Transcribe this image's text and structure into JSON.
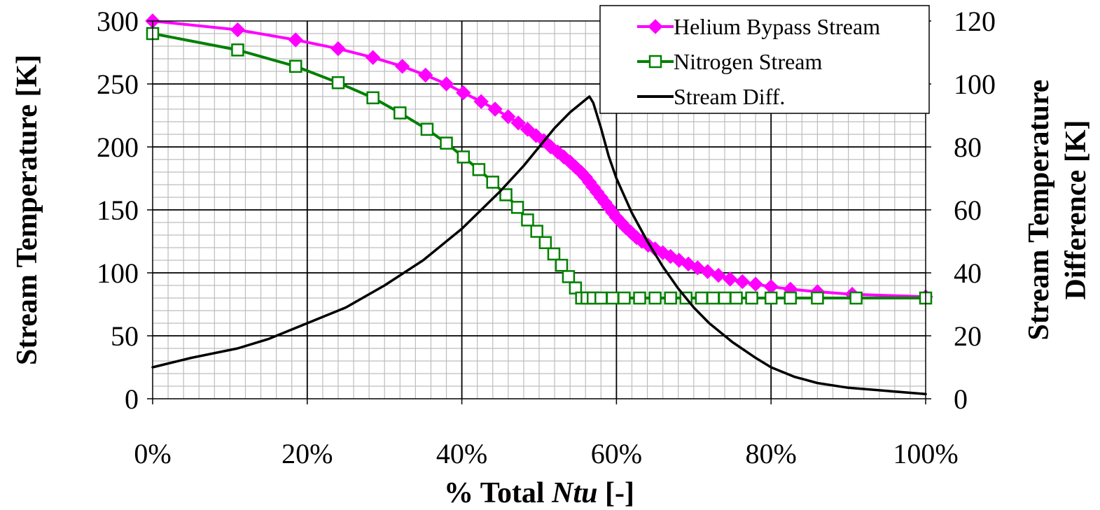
{
  "chart_data": {
    "type": "line",
    "title": "",
    "xlabel": "% Total Ntu [-]",
    "xlabel_parts": {
      "prefix": "% Total ",
      "italic": "Ntu",
      "suffix": " [-]"
    },
    "ylabel_left": "Stream Temperature [K]",
    "ylabel_right_line1": "Stream Temperature",
    "ylabel_right_line2": "Difference [K]",
    "xlim": [
      0,
      100
    ],
    "ylim_left": [
      0,
      300
    ],
    "ylim_right": [
      0,
      120
    ],
    "x_ticks": [
      0,
      20,
      40,
      60,
      80,
      100
    ],
    "x_tick_labels": [
      "0%",
      "20%",
      "40%",
      "60%",
      "80%",
      "100%"
    ],
    "y_ticks_left": [
      0,
      50,
      100,
      150,
      200,
      250,
      300
    ],
    "y_tick_labels_left": [
      "0",
      "50",
      "100",
      "150",
      "200",
      "250",
      "300"
    ],
    "y_ticks_right": [
      0,
      20,
      40,
      60,
      80,
      100,
      120
    ],
    "y_tick_labels_right": [
      "0",
      "20",
      "40",
      "60",
      "80",
      "100",
      "120"
    ],
    "grid": true,
    "legend_position": "top-right",
    "series": [
      {
        "name": "Helium Bypass Stream",
        "axis": "left",
        "color": "#ff00ff",
        "marker": "diamond",
        "x": [
          0,
          11,
          18.5,
          24,
          28.5,
          32.3,
          35.3,
          38,
          40.2,
          42.5,
          44.3,
          46,
          47.3,
          48.5,
          49.6,
          50.6,
          51.5,
          52.4,
          53.2,
          54,
          54.7,
          55.4,
          56,
          56.5,
          57,
          57.5,
          58,
          58.5,
          59,
          59.5,
          60,
          60.6,
          61.2,
          61.9,
          62.6,
          63.3,
          64.1,
          65,
          66,
          67,
          68.1,
          69.3,
          70.5,
          71.8,
          73.2,
          74.7,
          76.3,
          78,
          80,
          82.5,
          86,
          90.5,
          100
        ],
        "y": [
          300,
          293,
          285,
          278,
          271,
          264,
          257,
          250,
          243,
          236,
          230,
          224,
          219,
          214,
          209,
          205,
          200,
          196,
          192,
          188,
          184,
          180,
          176,
          172,
          168,
          164,
          160,
          156,
          152,
          148,
          144,
          140,
          136,
          132,
          128,
          125,
          122,
          119,
          116,
          113,
          110,
          107,
          104,
          101,
          98,
          95,
          93,
          91,
          89,
          87,
          85,
          83,
          81
        ]
      },
      {
        "name": "Nitrogen Stream",
        "axis": "left",
        "color": "#008000",
        "marker": "square-open",
        "x": [
          0,
          11,
          18.5,
          24,
          28.5,
          32,
          35.5,
          38,
          40.2,
          42.2,
          44,
          45.7,
          47.2,
          48.5,
          49.7,
          50.8,
          51.9,
          52.9,
          53.8,
          54.7,
          55.5,
          56.2,
          57,
          58,
          59.5,
          61,
          63,
          65,
          67,
          69,
          71,
          72.5,
          74,
          75.5,
          77.5,
          80,
          82.5,
          86,
          91,
          100
        ],
        "y": [
          290,
          277,
          264,
          251,
          239,
          227,
          214,
          203,
          192,
          182,
          172,
          162,
          152,
          142,
          133,
          124,
          115,
          106,
          97,
          88,
          80,
          80,
          80,
          80,
          80,
          80,
          80,
          80,
          80,
          80,
          80,
          80,
          80,
          80,
          80,
          80,
          80,
          80,
          80,
          80
        ]
      },
      {
        "name": "Stream Diff.",
        "axis": "right",
        "color": "#000000",
        "marker": "none",
        "x": [
          0,
          5,
          11,
          15,
          20,
          25,
          30,
          35,
          40,
          45,
          48,
          50,
          52,
          54,
          55,
          56,
          56.5,
          57,
          58,
          59,
          60,
          62,
          64,
          66,
          68,
          70,
          72,
          75,
          78,
          80,
          83,
          86,
          90,
          95,
          100
        ],
        "y": [
          10,
          13,
          16,
          19,
          24,
          29,
          36,
          44,
          54,
          66,
          74,
          80,
          86,
          91,
          93,
          95,
          96,
          94,
          86,
          77,
          70,
          59,
          50,
          42,
          35,
          29,
          24,
          18,
          13,
          10,
          7,
          5,
          3.5,
          2.5,
          1.5
        ]
      }
    ]
  }
}
